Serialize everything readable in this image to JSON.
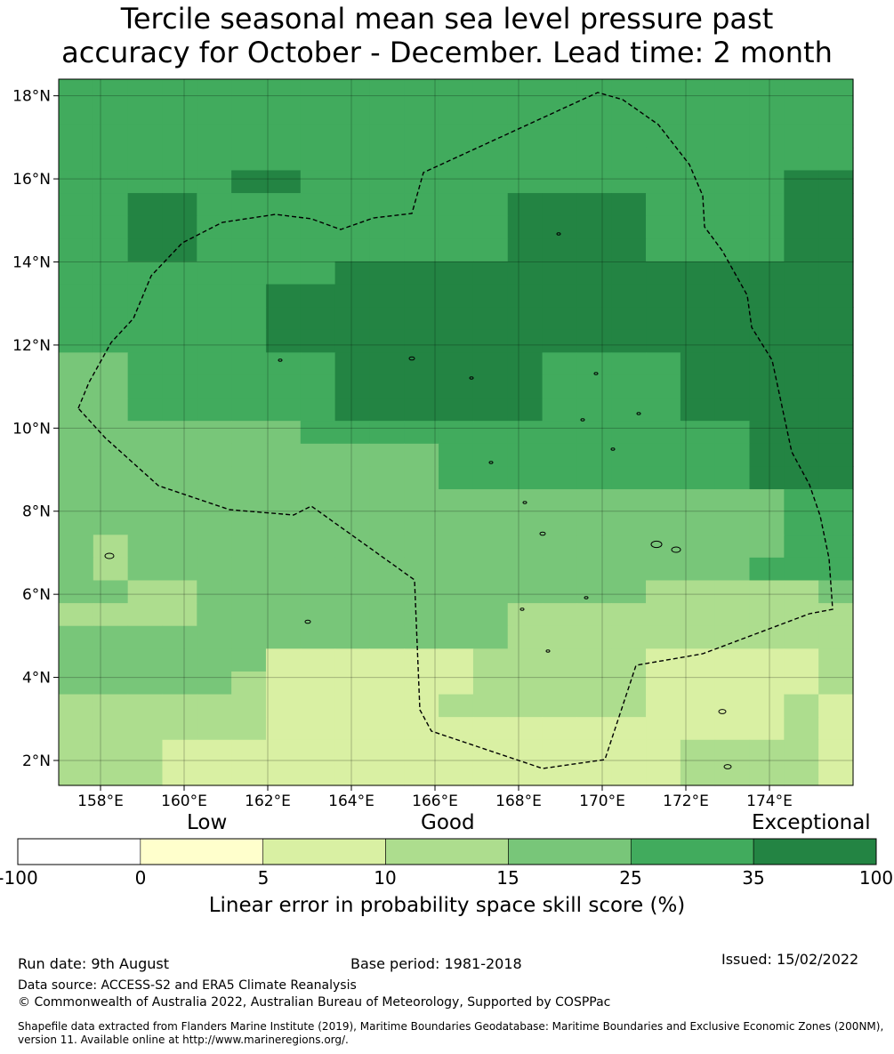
{
  "title": {
    "line1": "Tercile seasonal mean sea level pressure past",
    "line2": "accuracy for October - December. Lead time: 2 month"
  },
  "map": {
    "lon_range": [
      157.0,
      176.0
    ],
    "lat_range": [
      1.4,
      18.4
    ],
    "x_ticks": [
      "158°E",
      "160°E",
      "162°E",
      "164°E",
      "166°E",
      "168°E",
      "170°E",
      "172°E",
      "174°E"
    ],
    "y_ticks": [
      "2°N",
      "4°N",
      "6°N",
      "8°N",
      "10°N",
      "12°N",
      "14°N",
      "16°N",
      "18°N"
    ],
    "grid": true,
    "region": "Marshall Islands EEZ (dashed outline)"
  },
  "colorbar": {
    "categories": [
      "Low",
      "Good",
      "Exceptional"
    ],
    "ticks": [
      "-100",
      "0",
      "5",
      "10",
      "15",
      "25",
      "35",
      "100"
    ],
    "colors": [
      "#ffffff",
      "#ffffcc",
      "#d9f0a3",
      "#addd8e",
      "#78c679",
      "#41ab5d",
      "#238443"
    ],
    "label": "Linear error in probability space skill score (%)"
  },
  "footer": {
    "run_date": "Run date: 9th August",
    "base_period": "Base period: 1981-2018",
    "issued": "Issued: 15/02/2022",
    "data_source": "Data source: ACCESS-S2 and ERA5 Climate Reanalysis",
    "copyright": "© Commonwealth of Australia 2022, Australian Bureau of Meteorology, Supported by COSPPac",
    "shapefile": "Shapefile data extracted from Flanders Marine Institute (2019), Maritime Boundaries Geodatabase: Maritime Boundaries and Exclusive Economic Zones (200NM), version 11. Available online at http://www.marineregions.org/."
  }
}
